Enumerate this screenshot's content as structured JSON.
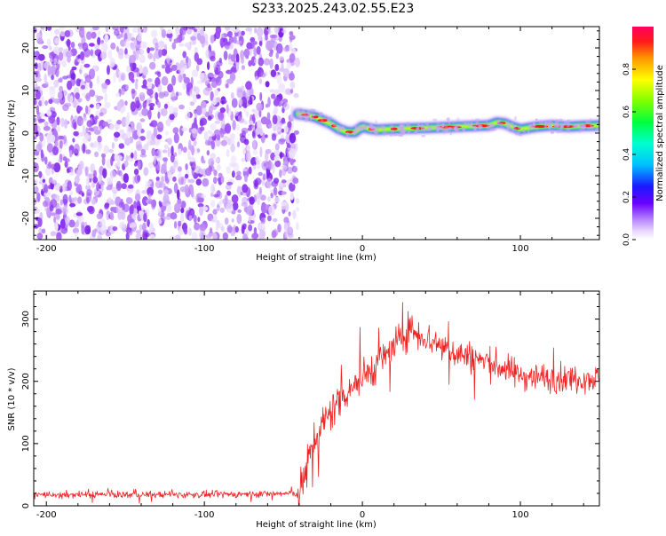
{
  "title": "S233.2025.243.02.55.E23",
  "colors": {
    "spectral_fill": "#8a2be2",
    "snr_line": "#ee2222",
    "axis": "#000000",
    "background": "#ffffff"
  },
  "chart_data": [
    {
      "type": "heatmap",
      "name": "spectrogram",
      "xlabel": "Height of straight line (km)",
      "ylabel": "Frequency (Hz)",
      "xlim": [
        -208,
        150
      ],
      "ylim": [
        -25,
        25
      ],
      "xticks": [
        -200,
        -100,
        0,
        100
      ],
      "yticks": [
        -20,
        -10,
        0,
        10,
        20
      ],
      "noise_region_x": [
        -208,
        -41
      ],
      "signal_ridge": {
        "x": [
          -41,
          -35,
          -30,
          -25,
          -20,
          -15,
          -10,
          -5,
          0,
          5,
          10,
          20,
          40,
          60,
          80,
          85,
          90,
          95,
          100,
          110,
          120,
          130,
          140,
          150
        ],
        "y": [
          4.5,
          4.2,
          3.8,
          3.0,
          2.2,
          1.0,
          0.3,
          0.2,
          1.5,
          1.0,
          0.8,
          1.0,
          1.2,
          1.5,
          1.8,
          2.5,
          2.3,
          1.5,
          0.9,
          1.5,
          1.8,
          1.5,
          1.7,
          1.8
        ]
      },
      "colorbar": {
        "label": "Normalized spectral amplitude",
        "range": [
          0,
          1
        ],
        "ticks": [
          0.0,
          0.2,
          0.4,
          0.6,
          0.8
        ],
        "tick_labels": [
          "0.0",
          "0.2",
          "0.4",
          "0.6",
          "0.8"
        ]
      }
    },
    {
      "type": "line",
      "name": "snr",
      "xlabel": "Height of straight line (km)",
      "ylabel": "SNR (10 * v/v)",
      "xlim": [
        -208,
        150
      ],
      "ylim": [
        0,
        345
      ],
      "xticks": [
        -200,
        -100,
        0,
        100
      ],
      "yticks": [
        0,
        100,
        200,
        300
      ],
      "envelope": {
        "x": [
          -208,
          -100,
          -40,
          -35,
          -30,
          -25,
          -20,
          -15,
          -10,
          -5,
          0,
          10,
          20,
          30,
          40,
          60,
          80,
          100,
          120,
          150
        ],
        "y": [
          18,
          18,
          20,
          60,
          110,
          130,
          150,
          170,
          185,
          195,
          205,
          230,
          255,
          285,
          270,
          245,
          230,
          210,
          205,
          205
        ]
      },
      "noise_amplitude": {
        "x": [
          -208,
          -42,
          -40,
          0,
          30,
          150
        ],
        "y": [
          7,
          7,
          45,
          40,
          35,
          28
        ]
      }
    }
  ]
}
